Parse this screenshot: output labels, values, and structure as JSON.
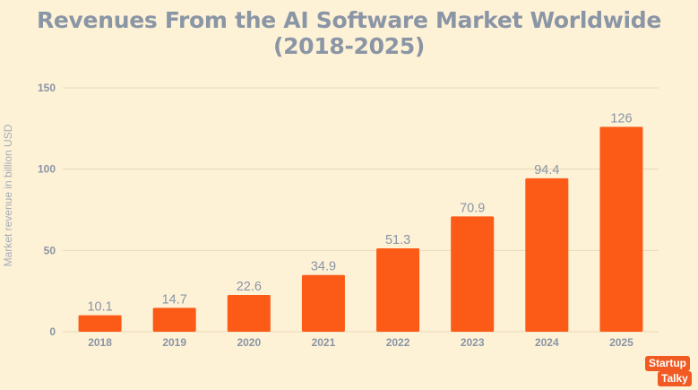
{
  "chart_data": {
    "type": "bar",
    "title": "Revenues From the AI Software Market Worldwide (2018-2025)",
    "ylabel": "Market revenue in billion USD",
    "xlabel": "",
    "categories": [
      "2018",
      "2019",
      "2020",
      "2021",
      "2022",
      "2023",
      "2024",
      "2025"
    ],
    "values": [
      10.1,
      14.7,
      22.6,
      34.9,
      51.3,
      70.9,
      94.4,
      126
    ],
    "data_labels": [
      "10.1",
      "14.7",
      "22.6",
      "34.9",
      "51.3",
      "70.9",
      "94.4",
      "126"
    ],
    "ylim": [
      0,
      150
    ],
    "yticks": [
      0,
      50,
      100,
      150
    ],
    "grid": true,
    "bar_color": "#fb5a17",
    "background_color": "#fdf1d6"
  },
  "branding": {
    "logo_line1": "Startup",
    "logo_line2": "Talky",
    "logo_color": "#f15a22"
  }
}
